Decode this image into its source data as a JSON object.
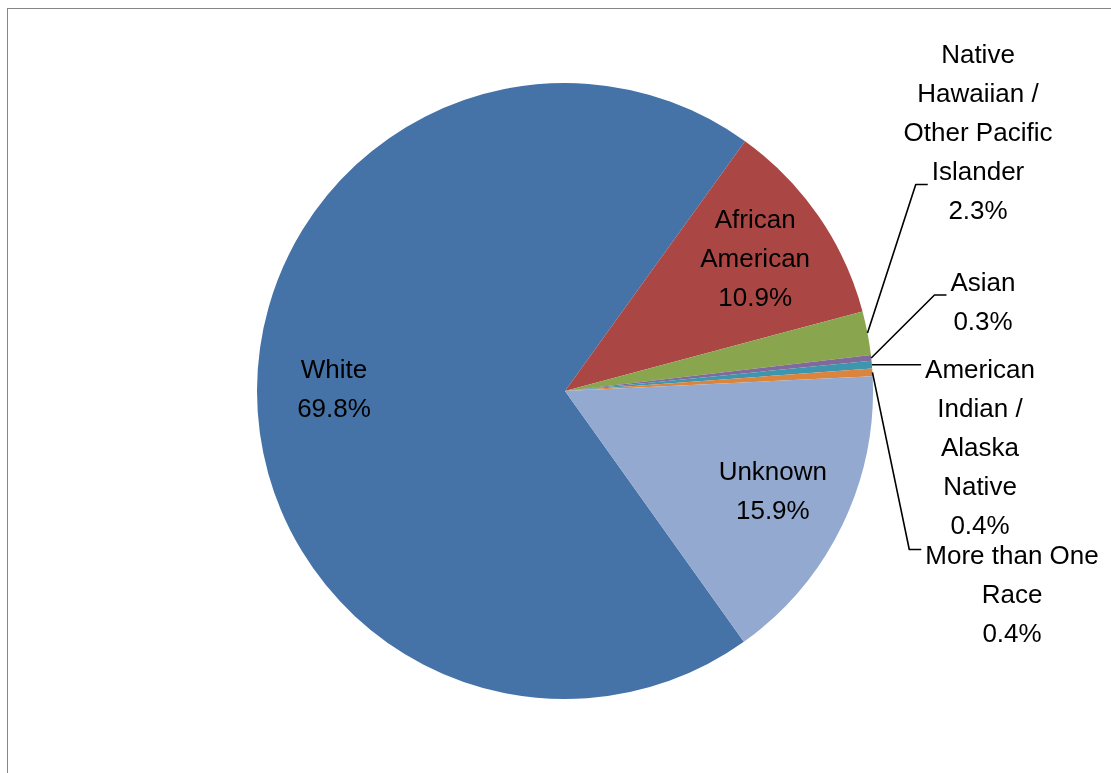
{
  "chart_data": {
    "type": "pie",
    "categories": [
      "White",
      "African American",
      "Native Hawaiian / Other Pacific Islander",
      "Asian",
      "American Indian / Alaska Native",
      "More than One Race",
      "Unknown"
    ],
    "values": [
      69.8,
      10.9,
      2.3,
      0.3,
      0.4,
      0.4,
      15.9
    ],
    "colors": [
      "#4572a7",
      "#aa4643",
      "#89a54e",
      "#80699b",
      "#3d96ae",
      "#db843d",
      "#93a9cf"
    ],
    "value_labels": [
      "69.8%",
      "10.9%",
      "2.3%",
      "0.3%",
      "0.4%",
      "0.4%",
      "15.9%"
    ],
    "legend": false
  }
}
